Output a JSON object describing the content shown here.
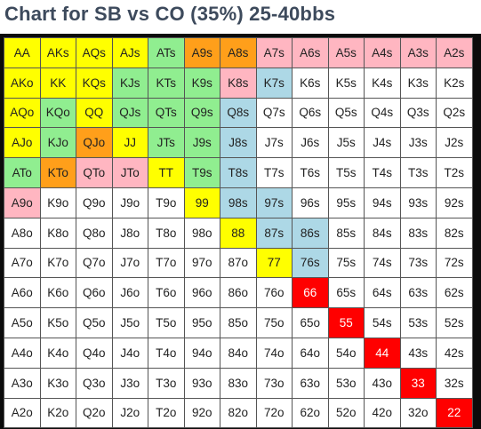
{
  "title": "Chart for SB vs CO (35%) 25-40bbs",
  "colors": {
    "yellow": "#ffff00",
    "green": "#90ee90",
    "orange": "#ff9f1a",
    "pink": "#ffb6c1",
    "blue": "#add8e6",
    "red": "#ff0000",
    "white": "#ffffff"
  },
  "grid": [
    [
      [
        "AA",
        "yellow"
      ],
      [
        "AKs",
        "yellow"
      ],
      [
        "AQs",
        "yellow"
      ],
      [
        "AJs",
        "yellow"
      ],
      [
        "ATs",
        "green"
      ],
      [
        "A9s",
        "orange"
      ],
      [
        "A8s",
        "orange"
      ],
      [
        "A7s",
        "pink"
      ],
      [
        "A6s",
        "pink"
      ],
      [
        "A5s",
        "pink"
      ],
      [
        "A4s",
        "pink"
      ],
      [
        "A3s",
        "pink"
      ],
      [
        "A2s",
        "pink"
      ]
    ],
    [
      [
        "AKo",
        "yellow"
      ],
      [
        "KK",
        "yellow"
      ],
      [
        "KQs",
        "yellow"
      ],
      [
        "KJs",
        "green"
      ],
      [
        "KTs",
        "green"
      ],
      [
        "K9s",
        "green"
      ],
      [
        "K8s",
        "pink"
      ],
      [
        "K7s",
        "blue"
      ],
      [
        "K6s",
        "white"
      ],
      [
        "K5s",
        "white"
      ],
      [
        "K4s",
        "white"
      ],
      [
        "K3s",
        "white"
      ],
      [
        "K2s",
        "white"
      ]
    ],
    [
      [
        "AQo",
        "yellow"
      ],
      [
        "KQo",
        "green"
      ],
      [
        "QQ",
        "yellow"
      ],
      [
        "QJs",
        "green"
      ],
      [
        "QTs",
        "green"
      ],
      [
        "Q9s",
        "green"
      ],
      [
        "Q8s",
        "blue"
      ],
      [
        "Q7s",
        "white"
      ],
      [
        "Q6s",
        "white"
      ],
      [
        "Q5s",
        "white"
      ],
      [
        "Q4s",
        "white"
      ],
      [
        "Q3s",
        "white"
      ],
      [
        "Q2s",
        "white"
      ]
    ],
    [
      [
        "AJo",
        "yellow"
      ],
      [
        "KJo",
        "green"
      ],
      [
        "QJo",
        "orange"
      ],
      [
        "JJ",
        "yellow"
      ],
      [
        "JTs",
        "green"
      ],
      [
        "J9s",
        "green"
      ],
      [
        "J8s",
        "blue"
      ],
      [
        "J7s",
        "white"
      ],
      [
        "J6s",
        "white"
      ],
      [
        "J5s",
        "white"
      ],
      [
        "J4s",
        "white"
      ],
      [
        "J3s",
        "white"
      ],
      [
        "J2s",
        "white"
      ]
    ],
    [
      [
        "ATo",
        "green"
      ],
      [
        "KTo",
        "orange"
      ],
      [
        "QTo",
        "pink"
      ],
      [
        "JTo",
        "pink"
      ],
      [
        "TT",
        "yellow"
      ],
      [
        "T9s",
        "green"
      ],
      [
        "T8s",
        "blue"
      ],
      [
        "T7s",
        "white"
      ],
      [
        "T6s",
        "white"
      ],
      [
        "T5s",
        "white"
      ],
      [
        "T4s",
        "white"
      ],
      [
        "T3s",
        "white"
      ],
      [
        "T2s",
        "white"
      ]
    ],
    [
      [
        "A9o",
        "pink"
      ],
      [
        "K9o",
        "white"
      ],
      [
        "Q9o",
        "white"
      ],
      [
        "J9o",
        "white"
      ],
      [
        "T9o",
        "white"
      ],
      [
        "99",
        "yellow"
      ],
      [
        "98s",
        "blue"
      ],
      [
        "97s",
        "blue"
      ],
      [
        "96s",
        "white"
      ],
      [
        "95s",
        "white"
      ],
      [
        "94s",
        "white"
      ],
      [
        "93s",
        "white"
      ],
      [
        "92s",
        "white"
      ]
    ],
    [
      [
        "A8o",
        "white"
      ],
      [
        "K8o",
        "white"
      ],
      [
        "Q8o",
        "white"
      ],
      [
        "J8o",
        "white"
      ],
      [
        "T8o",
        "white"
      ],
      [
        "98o",
        "white"
      ],
      [
        "88",
        "yellow"
      ],
      [
        "87s",
        "blue"
      ],
      [
        "86s",
        "blue"
      ],
      [
        "85s",
        "white"
      ],
      [
        "84s",
        "white"
      ],
      [
        "83s",
        "white"
      ],
      [
        "82s",
        "white"
      ]
    ],
    [
      [
        "A7o",
        "white"
      ],
      [
        "K7o",
        "white"
      ],
      [
        "Q7o",
        "white"
      ],
      [
        "J7o",
        "white"
      ],
      [
        "T7o",
        "white"
      ],
      [
        "97o",
        "white"
      ],
      [
        "87o",
        "white"
      ],
      [
        "77",
        "yellow"
      ],
      [
        "76s",
        "blue"
      ],
      [
        "75s",
        "white"
      ],
      [
        "74s",
        "white"
      ],
      [
        "73s",
        "white"
      ],
      [
        "72s",
        "white"
      ]
    ],
    [
      [
        "A6o",
        "white"
      ],
      [
        "K6o",
        "white"
      ],
      [
        "Q6o",
        "white"
      ],
      [
        "J6o",
        "white"
      ],
      [
        "T6o",
        "white"
      ],
      [
        "96o",
        "white"
      ],
      [
        "86o",
        "white"
      ],
      [
        "76o",
        "white"
      ],
      [
        "66",
        "red"
      ],
      [
        "65s",
        "white"
      ],
      [
        "64s",
        "white"
      ],
      [
        "63s",
        "white"
      ],
      [
        "62s",
        "white"
      ]
    ],
    [
      [
        "A5o",
        "white"
      ],
      [
        "K5o",
        "white"
      ],
      [
        "Q5o",
        "white"
      ],
      [
        "J5o",
        "white"
      ],
      [
        "T5o",
        "white"
      ],
      [
        "95o",
        "white"
      ],
      [
        "85o",
        "white"
      ],
      [
        "75o",
        "white"
      ],
      [
        "65o",
        "white"
      ],
      [
        "55",
        "red"
      ],
      [
        "54s",
        "white"
      ],
      [
        "53s",
        "white"
      ],
      [
        "52s",
        "white"
      ]
    ],
    [
      [
        "A4o",
        "white"
      ],
      [
        "K4o",
        "white"
      ],
      [
        "Q4o",
        "white"
      ],
      [
        "J4o",
        "white"
      ],
      [
        "T4o",
        "white"
      ],
      [
        "94o",
        "white"
      ],
      [
        "84o",
        "white"
      ],
      [
        "74o",
        "white"
      ],
      [
        "64o",
        "white"
      ],
      [
        "54o",
        "white"
      ],
      [
        "44",
        "red"
      ],
      [
        "43s",
        "white"
      ],
      [
        "42s",
        "white"
      ]
    ],
    [
      [
        "A3o",
        "white"
      ],
      [
        "K3o",
        "white"
      ],
      [
        "Q3o",
        "white"
      ],
      [
        "J3o",
        "white"
      ],
      [
        "T3o",
        "white"
      ],
      [
        "93o",
        "white"
      ],
      [
        "83o",
        "white"
      ],
      [
        "73o",
        "white"
      ],
      [
        "63o",
        "white"
      ],
      [
        "53o",
        "white"
      ],
      [
        "43o",
        "white"
      ],
      [
        "33",
        "red"
      ],
      [
        "32s",
        "white"
      ]
    ],
    [
      [
        "A2o",
        "white"
      ],
      [
        "K2o",
        "white"
      ],
      [
        "Q2o",
        "white"
      ],
      [
        "J2o",
        "white"
      ],
      [
        "T2o",
        "white"
      ],
      [
        "92o",
        "white"
      ],
      [
        "82o",
        "white"
      ],
      [
        "72o",
        "white"
      ],
      [
        "62o",
        "white"
      ],
      [
        "52o",
        "white"
      ],
      [
        "42o",
        "white"
      ],
      [
        "32o",
        "white"
      ],
      [
        "22",
        "red"
      ]
    ]
  ]
}
